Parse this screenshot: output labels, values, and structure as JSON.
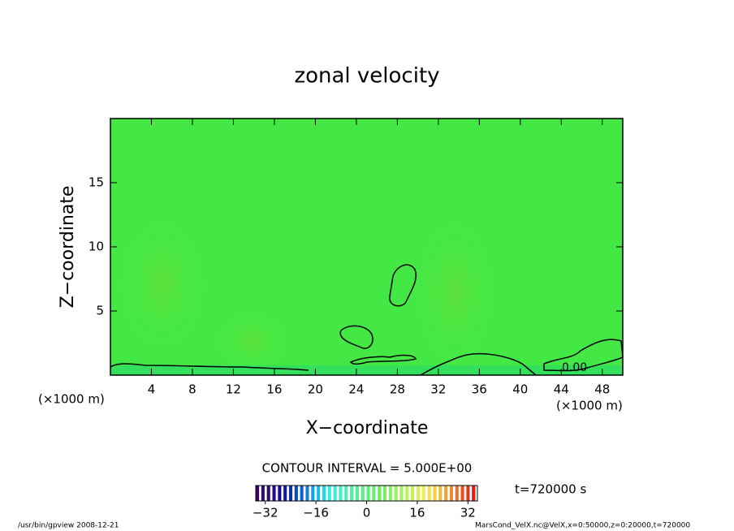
{
  "chart_data": {
    "type": "contour",
    "title": "zonal velocity",
    "x_label": "X−coordinate",
    "y_label": "Z−coordinate",
    "x_unit": "(×1000 m)",
    "xlim": [
      0,
      50
    ],
    "xticks": [
      4,
      8,
      12,
      16,
      20,
      24,
      28,
      32,
      36,
      40,
      44,
      48
    ],
    "ylim": [
      0,
      20
    ],
    "yticks": [
      5,
      10,
      15
    ],
    "contour_interval": "CONTOUR INTERVAL = 5.000E+00",
    "contour_label": "0.00",
    "time": "t=720000 s",
    "clim": [
      -35,
      35
    ],
    "cticks": [
      {
        "value": -32,
        "label": "−32"
      },
      {
        "value": -16,
        "label": "−16"
      },
      0,
      16,
      32
    ],
    "footer_left": "/usr/bin/gpview  2008-12-21",
    "footer_right": "MarsCond_VelX.nc@VelX,x=0:50000,z=0:20000,t=720000"
  }
}
